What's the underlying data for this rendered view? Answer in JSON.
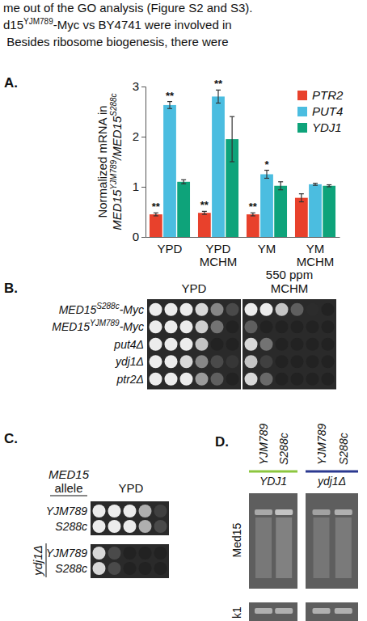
{
  "header_text": {
    "line1": "me out of the GO analysis (Figure S2 and S3).",
    "line2": {
      "base": "d15",
      "sup": "YJM789",
      "rest": "-Myc vs BY4741 were involved in"
    },
    "line3": " Besides ribosome biogenesis, there were"
  },
  "panel_labels": [
    "A.",
    "B.",
    "C.",
    "D."
  ],
  "chart_data": {
    "type": "bar",
    "y_label": {
      "line1": "Normalized mRNA in",
      "line2": [
        {
          "base": "MED15",
          "sup": "YJM789"
        },
        {
          "base": "/MED15",
          "sup": "S288c"
        }
      ]
    },
    "categories": [
      "YPD",
      "YPD MCHM",
      "YM",
      "YM MCHM"
    ],
    "series": [
      {
        "name": "PTR2",
        "color": "#e8412c",
        "values": [
          0.45,
          0.48,
          0.45,
          0.78
        ],
        "errors": [
          0.03,
          0.03,
          0.03,
          0.08
        ],
        "significance": [
          "**",
          "**",
          "**",
          null
        ]
      },
      {
        "name": "PUT4",
        "color": "#4bbde0",
        "values": [
          2.63,
          2.8,
          1.25,
          1.05
        ],
        "errors": [
          0.07,
          0.13,
          0.08,
          0.02
        ],
        "significance": [
          "**",
          "**",
          "*",
          null
        ]
      },
      {
        "name": "YDJ1",
        "color": "#0ea37a",
        "values": [
          1.1,
          1.95,
          1.02,
          1.02
        ],
        "errors": [
          0.04,
          0.45,
          0.08,
          0.02
        ],
        "significance": [
          null,
          null,
          null,
          null
        ]
      }
    ],
    "ylim": [
      0,
      3
    ],
    "yticks": [
      0,
      1,
      2,
      3
    ],
    "legend": "upper right",
    "grid": false
  },
  "panel_b": {
    "conditions": [
      [
        "YPD"
      ],
      [
        "550 ppm",
        "MCHM"
      ]
    ],
    "rows": [
      {
        "label": {
          "base": "MED15",
          "sup": "S288c",
          "rest": "-Myc"
        },
        "growth": [
          [
            1,
            1,
            1,
            0.9,
            0.5,
            0.2
          ],
          [
            1,
            1,
            0.8,
            0.3,
            0.05,
            0
          ]
        ]
      },
      {
        "label": {
          "base": "MED15",
          "sup": "YJM789",
          "rest": "-Myc"
        },
        "growth": [
          [
            1,
            1,
            1,
            0.85,
            0.4,
            0
          ],
          [
            0.3,
            0,
            0,
            0,
            0,
            0
          ]
        ]
      },
      {
        "label": {
          "base": "put4Δ"
        },
        "growth": [
          [
            1,
            1,
            1,
            0.8,
            0,
            0
          ],
          [
            0.9,
            0.4,
            0,
            0,
            0,
            0
          ]
        ]
      },
      {
        "label": {
          "base": "ydj1Δ"
        },
        "growth": [
          [
            1,
            1,
            0.9,
            0.5,
            0.2,
            0.1
          ],
          [
            0.8,
            0.15,
            0,
            0,
            0,
            0
          ]
        ]
      },
      {
        "label": {
          "base": "ptr2Δ"
        },
        "growth": [
          [
            1,
            1,
            1,
            0.6,
            0.3,
            0
          ],
          [
            0.9,
            0.35,
            0,
            0,
            0,
            0
          ]
        ]
      }
    ]
  },
  "panel_c": {
    "header": {
      "line1": "MED15",
      "line2": "allele"
    },
    "condition": "YPD",
    "rows": [
      {
        "label": "YJM789",
        "growth": [
          1,
          1,
          1,
          0.7,
          0.15
        ]
      },
      {
        "label": "S288c",
        "growth": [
          1,
          1,
          1,
          0.7,
          0.2
        ]
      },
      {
        "label": "YJM789",
        "growth": [
          0.9,
          0.2,
          0,
          0,
          0
        ]
      },
      {
        "label": "S288c",
        "growth": [
          0.9,
          0.2,
          0,
          0,
          0
        ]
      }
    ],
    "group_label": "ydj1Δ"
  },
  "panel_d": {
    "groups": [
      {
        "label": "YDJ1",
        "color": "#8cc63f",
        "lanes": [
          "YJM789",
          "S288c"
        ]
      },
      {
        "label": "ydj1Δ",
        "color": "#2b3990",
        "lanes": [
          "YJM789",
          "S288c"
        ]
      }
    ],
    "rows": [
      {
        "label": "Med15",
        "signal": [
          [
            0.55,
            0.75
          ],
          [
            0.5,
            0.6
          ]
        ]
      },
      {
        "label": "k1",
        "signal": [
          [
            0.6,
            0.6
          ],
          [
            0.6,
            0.6
          ]
        ]
      }
    ]
  }
}
